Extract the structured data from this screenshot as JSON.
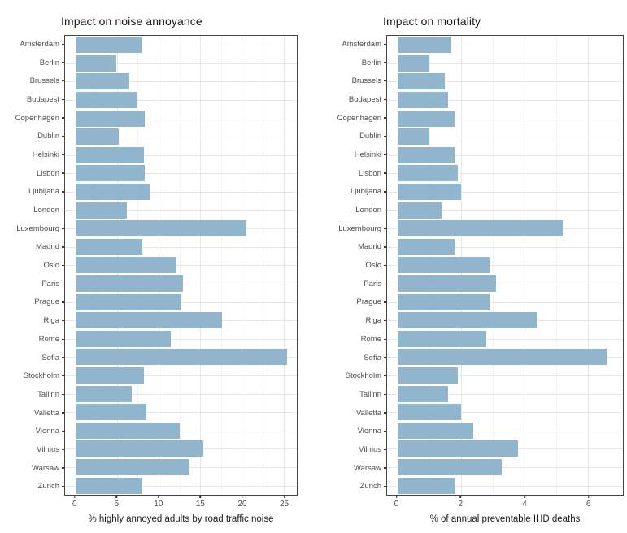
{
  "figure": {
    "background": "#FFFFFF"
  },
  "styles": {
    "bar_color": "#90B5CC",
    "panel_border": "#444444",
    "grid_major": "#E6E6E6",
    "grid_minor": "#F2F2F2",
    "tick_color": "#333333",
    "label_color": "#4D4D4D",
    "title_color": "#1A1A1A"
  },
  "chart_data": [
    {
      "type": "bar",
      "orientation": "horizontal",
      "title": "Impact on noise annoyance",
      "xlabel": "% highly annoyed adults by road traffic noise",
      "categories": [
        "Amsterdam",
        "Berlin",
        "Brussels",
        "Budapest",
        "Copenhagen",
        "Dublin",
        "Helsinki",
        "Lisbon",
        "Ljubljana",
        "London",
        "Luxembourg",
        "Madrid",
        "Oslo",
        "Paris",
        "Prague",
        "Riga",
        "Rome",
        "Sofia",
        "Stockholm",
        "Tallinn",
        "Valletta",
        "Vienna",
        "Vilnius",
        "Warsaw",
        "Zurich"
      ],
      "values": [
        7.9,
        4.9,
        6.5,
        7.4,
        8.3,
        5.2,
        8.2,
        8.3,
        8.9,
        6.2,
        20.5,
        8.0,
        12.1,
        12.9,
        12.7,
        17.6,
        11.5,
        25.4,
        8.2,
        6.8,
        8.5,
        12.5,
        15.4,
        13.7,
        8.0
      ],
      "xlim": [
        -1.24,
        26.6
      ],
      "xticks": [
        0,
        5,
        10,
        15,
        20,
        25
      ],
      "xtick_labels": [
        "0",
        "5",
        "10",
        "15",
        "20",
        "25"
      ],
      "minor_ticks": [
        2.5,
        7.5,
        12.5,
        17.5,
        22.5
      ],
      "bar_color": "#90B5CC",
      "grid": true,
      "legend": false
    },
    {
      "type": "bar",
      "orientation": "horizontal",
      "title": "Impact on mortality",
      "xlabel": "% of annual preventable IHD deaths",
      "categories": [
        "Amsterdam",
        "Berlin",
        "Brussels",
        "Budapest",
        "Copenhagen",
        "Dublin",
        "Helsinki",
        "Lisbon",
        "Ljubljana",
        "London",
        "Luxembourg",
        "Madrid",
        "Oslo",
        "Paris",
        "Prague",
        "Riga",
        "Rome",
        "Sofia",
        "Stockholm",
        "Tallinn",
        "Valletta",
        "Vienna",
        "Vilnius",
        "Warsaw",
        "Zurich"
      ],
      "values": [
        1.7,
        1.0,
        1.5,
        1.6,
        1.8,
        1.0,
        1.8,
        1.9,
        2.0,
        1.4,
        5.2,
        1.8,
        2.9,
        3.1,
        2.9,
        4.4,
        2.8,
        6.6,
        1.9,
        1.6,
        2.0,
        2.4,
        3.8,
        3.3,
        1.8
      ],
      "xlim": [
        -0.32,
        7.1
      ],
      "xticks": [
        0,
        2,
        4,
        6
      ],
      "xtick_labels": [
        "0",
        "2",
        "4",
        "6"
      ],
      "minor_ticks": [
        1,
        3,
        5
      ],
      "bar_color": "#90B5CC",
      "grid": true,
      "legend": false
    }
  ]
}
